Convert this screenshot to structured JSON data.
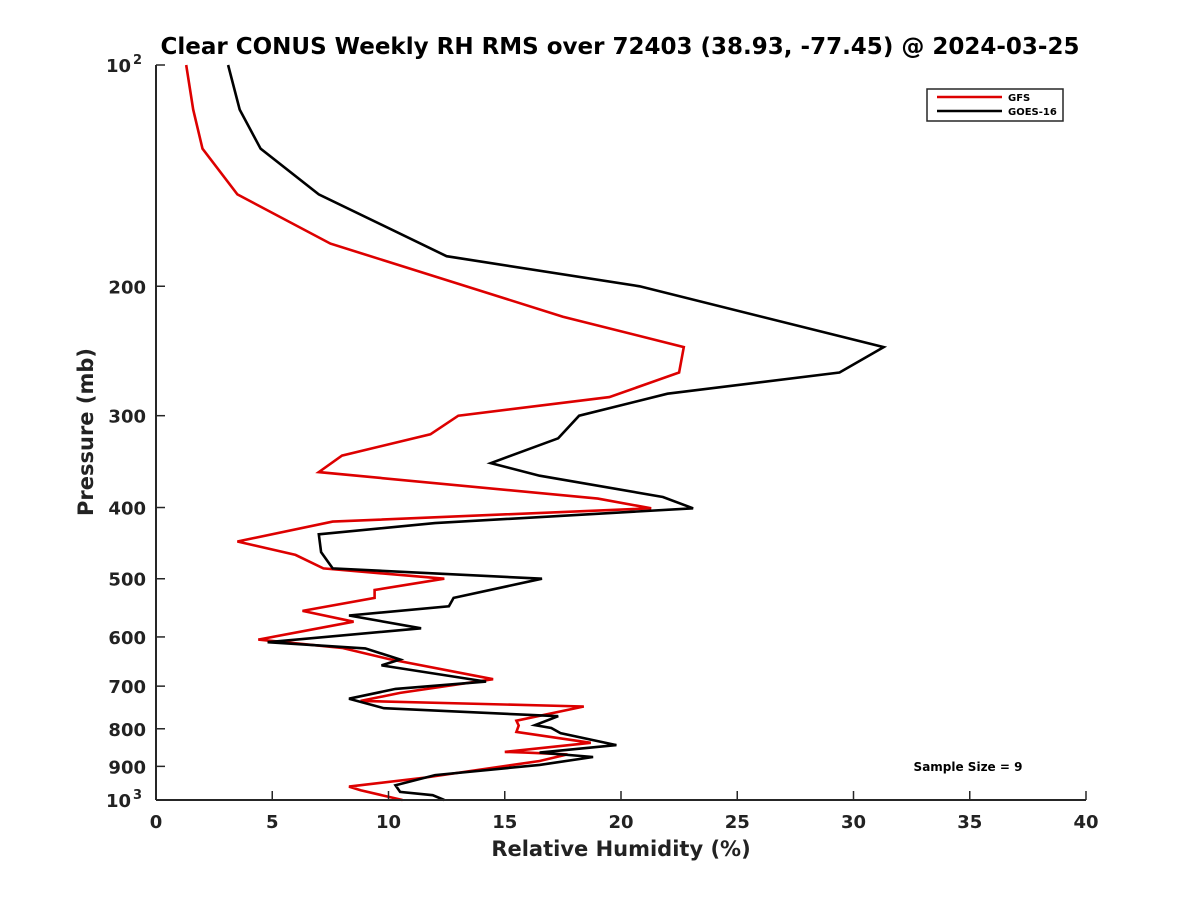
{
  "chart_data": {
    "type": "line",
    "title": "Clear CONUS Weekly RH RMS over 72403 (38.93, -77.45) @ 2024-03-25",
    "xlabel": "Relative Humidity (%)",
    "ylabel": "Pressure (mb)",
    "xlim": [
      0,
      40
    ],
    "ylim": [
      100,
      1000
    ],
    "y_scale": "log",
    "y_reversed": true,
    "x_ticks": [
      "0",
      "5",
      "10",
      "15",
      "20",
      "25",
      "30",
      "35",
      "40"
    ],
    "y_ticks": [
      {
        "value": 100,
        "base": "10",
        "sup": "2"
      },
      {
        "value": 200,
        "label": "200"
      },
      {
        "value": 300,
        "label": "300"
      },
      {
        "value": 400,
        "label": "400"
      },
      {
        "value": 500,
        "label": "500"
      },
      {
        "value": 600,
        "label": "600"
      },
      {
        "value": 700,
        "label": "700"
      },
      {
        "value": 800,
        "label": "800"
      },
      {
        "value": 900,
        "label": "900"
      },
      {
        "value": 1000,
        "base": "10",
        "sup": "3"
      }
    ],
    "grid": false,
    "legend_position": "top-right",
    "annotation": "Sample Size = 9",
    "series": [
      {
        "name": "GFS",
        "color": "#dd0000",
        "points": [
          [
            1.3,
            100
          ],
          [
            1.6,
            115
          ],
          [
            2.0,
            130
          ],
          [
            3.5,
            150
          ],
          [
            7.5,
            175
          ],
          [
            17.5,
            220
          ],
          [
            22.7,
            242
          ],
          [
            22.5,
            262
          ],
          [
            19.5,
            283
          ],
          [
            13.0,
            300
          ],
          [
            11.8,
            318
          ],
          [
            8.0,
            340
          ],
          [
            7.0,
            358
          ],
          [
            19.0,
            389
          ],
          [
            21.3,
            401
          ],
          [
            7.6,
            418
          ],
          [
            3.5,
            445
          ],
          [
            6.0,
            464
          ],
          [
            7.2,
            484
          ],
          [
            12.4,
            500
          ],
          [
            9.4,
            518
          ],
          [
            9.4,
            531
          ],
          [
            6.3,
            553
          ],
          [
            8.5,
            572
          ],
          [
            4.4,
            605
          ],
          [
            8.0,
            621
          ],
          [
            10.0,
            643
          ],
          [
            14.5,
            685
          ],
          [
            10.5,
            715
          ],
          [
            8.8,
            733
          ],
          [
            18.4,
            746
          ],
          [
            15.5,
            780
          ],
          [
            15.6,
            792
          ],
          [
            15.5,
            808
          ],
          [
            18.7,
            836
          ],
          [
            15.0,
            860
          ],
          [
            15.9,
            862
          ],
          [
            17.7,
            867
          ],
          [
            16.5,
            885
          ],
          [
            11.6,
            932
          ],
          [
            8.3,
            959
          ],
          [
            8.8,
            970
          ],
          [
            10.6,
            1000
          ]
        ]
      },
      {
        "name": "GOES-16",
        "color": "#000000",
        "points": [
          [
            3.1,
            100
          ],
          [
            3.6,
            115
          ],
          [
            4.5,
            130
          ],
          [
            7.0,
            150
          ],
          [
            12.5,
            182
          ],
          [
            20.8,
            200
          ],
          [
            31.3,
            242
          ],
          [
            29.4,
            262
          ],
          [
            22.0,
            280
          ],
          [
            18.2,
            300
          ],
          [
            17.3,
            322
          ],
          [
            14.4,
            348
          ],
          [
            16.5,
            362
          ],
          [
            21.8,
            387
          ],
          [
            23.1,
            401
          ],
          [
            12.0,
            420
          ],
          [
            7.0,
            435
          ],
          [
            7.1,
            460
          ],
          [
            7.6,
            484
          ],
          [
            16.6,
            500
          ],
          [
            12.8,
            531
          ],
          [
            12.6,
            545
          ],
          [
            8.3,
            561
          ],
          [
            11.4,
            584
          ],
          [
            4.8,
            610
          ],
          [
            9.0,
            622
          ],
          [
            10.5,
            644
          ],
          [
            9.7,
            656
          ],
          [
            14.2,
            690
          ],
          [
            10.3,
            706
          ],
          [
            8.3,
            728
          ],
          [
            9.8,
            750
          ],
          [
            17.3,
            769
          ],
          [
            16.3,
            791
          ],
          [
            17.0,
            798
          ],
          [
            17.4,
            811
          ],
          [
            19.8,
            842
          ],
          [
            16.5,
            862
          ],
          [
            18.8,
            874
          ],
          [
            16.5,
            896
          ],
          [
            12.0,
            925
          ],
          [
            10.3,
            955
          ],
          [
            10.5,
            975
          ],
          [
            11.9,
            985
          ],
          [
            12.4,
            1000
          ]
        ]
      }
    ]
  }
}
